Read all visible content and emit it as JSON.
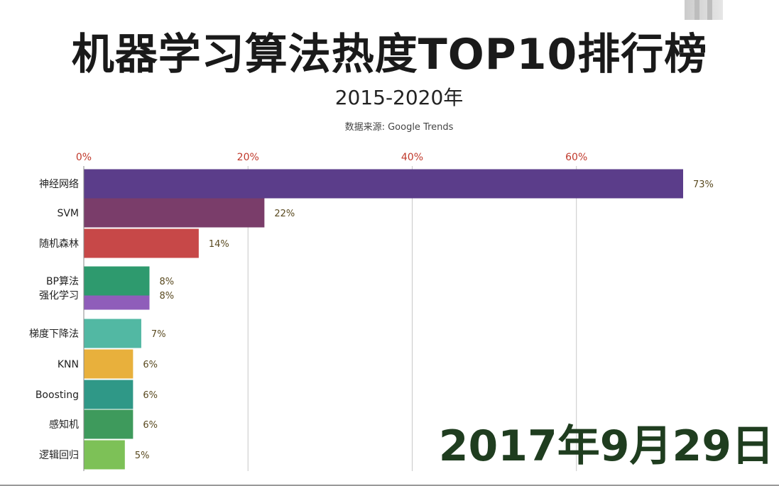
{
  "header": {
    "title": "机器学习算法热度TOP10排行榜",
    "subtitle": "2015-2020年",
    "source": "数据来源: Google Trends"
  },
  "date_stamp": "2017年9月29日",
  "chart_data": {
    "type": "bar",
    "orientation": "horizontal",
    "title": "机器学习算法热度TOP10排行榜",
    "subtitle": "2015-2020年",
    "xlim": [
      0,
      73
    ],
    "x_ticks": [
      0,
      20,
      40,
      60
    ],
    "x_tick_labels": [
      "0%",
      "20%",
      "40%",
      "60%"
    ],
    "grid": true,
    "categories": [
      "神经网络",
      "SVM",
      "随机森林",
      "BP算法",
      "强化学习",
      "梯度下降法",
      "KNN",
      "Boosting",
      "感知机",
      "逻辑回归"
    ],
    "values": [
      73,
      22,
      14,
      8,
      8,
      7,
      6,
      6,
      6,
      5
    ],
    "value_labels": [
      "73%",
      "22%",
      "14%",
      "8%",
      "8%",
      "7%",
      "6%",
      "6%",
      "6%",
      "5%"
    ],
    "colors": [
      "#5b3d8a",
      "#7a3d6a",
      "#c74848",
      "#2e9a6e",
      "#8f5dba",
      "#52b8a3",
      "#e8b03c",
      "#2f9887",
      "#3e9a5c",
      "#7dc157"
    ],
    "tick_color": "#c0392b"
  }
}
